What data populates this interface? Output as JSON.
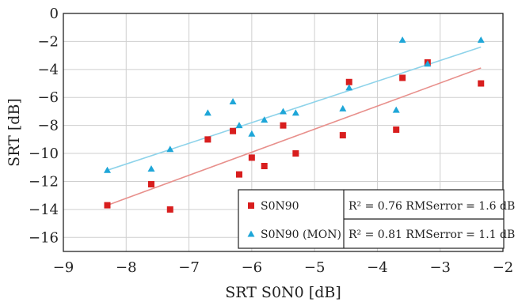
{
  "chart_data": {
    "type": "scatter",
    "title": "",
    "xlabel": "SRT S0N0 [dB]",
    "ylabel": "SRT [dB]",
    "xlim": [
      -9,
      -2
    ],
    "ylim": [
      -17,
      0
    ],
    "xticks": [
      -9,
      -8,
      -7,
      -6,
      -5,
      -4,
      -3,
      -2
    ],
    "yticks": [
      0,
      -2,
      -4,
      -6,
      -8,
      -10,
      -12,
      -14,
      -16
    ],
    "xtick_labels": [
      "−9",
      "−8",
      "−7",
      "−6",
      "−5",
      "−4",
      "−3",
      "−2"
    ],
    "ytick_labels": [
      "0",
      "−2",
      "−4",
      "−6",
      "−8",
      "−10",
      "−12",
      "−14",
      "−16"
    ],
    "grid": true,
    "legend_position": "bottom-right",
    "series": [
      {
        "name": "S0N90",
        "marker": "square",
        "color": "#d81e1e",
        "points": [
          [
            -8.3,
            -13.7
          ],
          [
            -7.6,
            -12.2
          ],
          [
            -7.3,
            -14.0
          ],
          [
            -6.7,
            -9.0
          ],
          [
            -6.3,
            -8.4
          ],
          [
            -6.2,
            -11.5
          ],
          [
            -6.0,
            -10.3
          ],
          [
            -5.8,
            -10.9
          ],
          [
            -5.5,
            -8.0
          ],
          [
            -5.3,
            -10.0
          ],
          [
            -4.55,
            -8.7
          ],
          [
            -4.45,
            -4.9
          ],
          [
            -3.7,
            -8.3
          ],
          [
            -3.6,
            -4.6
          ],
          [
            -3.2,
            -3.5
          ],
          [
            -2.35,
            -5.0
          ]
        ],
        "fit": {
          "x": [
            -8.3,
            -2.35
          ],
          "y": [
            -13.7,
            -3.9
          ]
        },
        "stats": {
          "r2_text": "R² = 0.76",
          "rms_text": "RMSerror = 1.6 dB"
        }
      },
      {
        "name": "S0N90 (MON)",
        "marker": "triangle",
        "color": "#1ea6d8",
        "points": [
          [
            -8.3,
            -11.2
          ],
          [
            -7.6,
            -11.1
          ],
          [
            -7.3,
            -9.7
          ],
          [
            -6.7,
            -7.1
          ],
          [
            -6.3,
            -6.3
          ],
          [
            -6.2,
            -8.0
          ],
          [
            -6.0,
            -8.6
          ],
          [
            -5.8,
            -7.6
          ],
          [
            -5.5,
            -7.0
          ],
          [
            -5.3,
            -7.1
          ],
          [
            -4.55,
            -6.8
          ],
          [
            -4.45,
            -5.3
          ],
          [
            -3.7,
            -6.9
          ],
          [
            -3.6,
            -1.9
          ],
          [
            -3.2,
            -3.6
          ],
          [
            -2.35,
            -1.9
          ]
        ],
        "fit": {
          "x": [
            -8.3,
            -2.35
          ],
          "y": [
            -11.2,
            -2.4
          ]
        },
        "stats": {
          "r2_text": "R² = 0.81",
          "rms_text": "RMSerror = 1.1 dB"
        }
      }
    ]
  }
}
